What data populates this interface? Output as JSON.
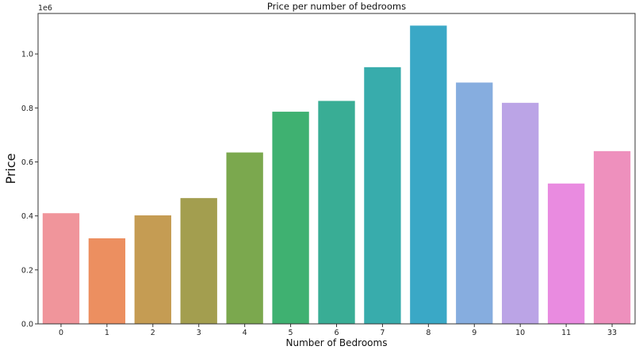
{
  "chart_data": {
    "type": "bar",
    "title": "Price per number of bedrooms",
    "xlabel": "Number of Bedrooms",
    "ylabel": "Price",
    "y_offset_label": "1e6",
    "categories": [
      "0",
      "1",
      "2",
      "3",
      "4",
      "5",
      "6",
      "7",
      "8",
      "9",
      "10",
      "11",
      "33"
    ],
    "values": [
      410000,
      317000,
      402000,
      466000,
      635000,
      786000,
      826000,
      951000,
      1105000,
      894000,
      819000,
      520000,
      640000
    ],
    "colors": [
      "#f0959b",
      "#ec8f60",
      "#c59c53",
      "#a39e4f",
      "#7ba84e",
      "#3fb171",
      "#39ad95",
      "#38acac",
      "#3aa8c6",
      "#86addf",
      "#bba4e6",
      "#e98be0",
      "#ee90bd"
    ],
    "ylim": [
      0,
      1150000
    ],
    "yticks": [
      0,
      200000,
      400000,
      600000,
      800000,
      1000000
    ],
    "ytick_labels": [
      "0.0",
      "0.2",
      "0.4",
      "0.6",
      "0.8",
      "1.0"
    ],
    "grid": false,
    "legend": "none"
  }
}
